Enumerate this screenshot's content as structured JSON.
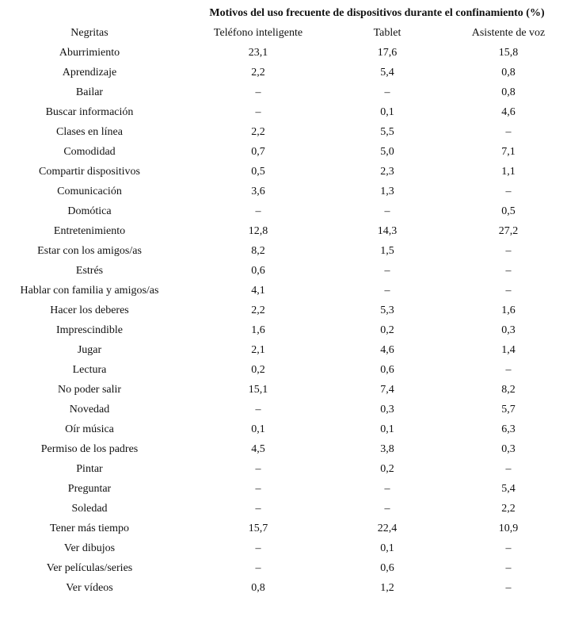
{
  "table": {
    "title": "Motivos del uso frecuente de dispositivos durante el confinamiento (%)",
    "header": [
      "Negritas",
      "Teléfono inteligente",
      "Tablet",
      "Asistente de voz"
    ],
    "rows": [
      [
        "Aburrimiento",
        "23,1",
        "17,6",
        "15,8"
      ],
      [
        "Aprendizaje",
        "2,2",
        "5,4",
        "0,8"
      ],
      [
        "Bailar",
        "–",
        "–",
        "0,8"
      ],
      [
        "Buscar información",
        "–",
        "0,1",
        "4,6"
      ],
      [
        "Clases en línea",
        "2,2",
        "5,5",
        "–"
      ],
      [
        "Comodidad",
        "0,7",
        "5,0",
        "7,1"
      ],
      [
        "Compartir dispositivos",
        "0,5",
        "2,3",
        "1,1"
      ],
      [
        "Comunicación",
        "3,6",
        "1,3",
        "–"
      ],
      [
        "Domótica",
        "–",
        "–",
        "0,5"
      ],
      [
        "Entretenimiento",
        "12,8",
        "14,3",
        "27,2"
      ],
      [
        "Estar con los amigos/as",
        "8,2",
        "1,5",
        "–"
      ],
      [
        "Estrés",
        "0,6",
        "–",
        "–"
      ],
      [
        "Hablar con familia y amigos/as",
        "4,1",
        "–",
        "–"
      ],
      [
        "Hacer los deberes",
        "2,2",
        "5,3",
        "1,6"
      ],
      [
        "Imprescindible",
        "1,6",
        "0,2",
        "0,3"
      ],
      [
        "Jugar",
        "2,1",
        "4,6",
        "1,4"
      ],
      [
        "Lectura",
        "0,2",
        "0,6",
        "–"
      ],
      [
        "No poder salir",
        "15,1",
        "7,4",
        "8,2"
      ],
      [
        "Novedad",
        "–",
        "0,3",
        "5,7"
      ],
      [
        "Oír música",
        "0,1",
        "0,1",
        "6,3"
      ],
      [
        "Permiso de los padres",
        "4,5",
        "3,8",
        "0,3"
      ],
      [
        "Pintar",
        "–",
        "0,2",
        "–"
      ],
      [
        "Preguntar",
        "–",
        "–",
        "5,4"
      ],
      [
        "Soledad",
        "–",
        "–",
        "2,2"
      ],
      [
        "Tener más tiempo",
        "15,7",
        "22,4",
        "10,9"
      ],
      [
        "Ver dibujos",
        "–",
        "0,1",
        "–"
      ],
      [
        "Ver películas/series",
        "–",
        "0,6",
        "–"
      ],
      [
        "Ver vídeos",
        "0,8",
        "1,2",
        "–"
      ]
    ]
  }
}
